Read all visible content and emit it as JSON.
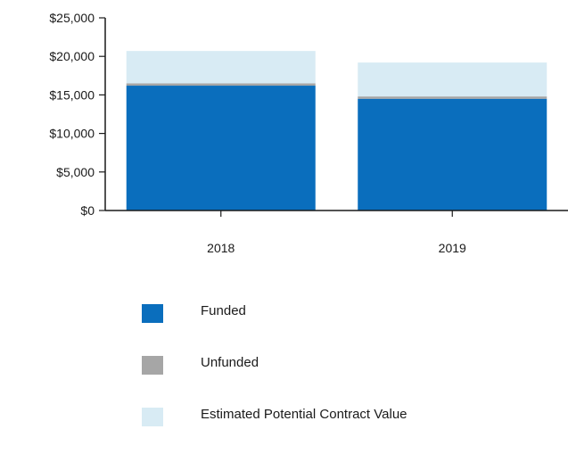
{
  "chart_data": {
    "type": "bar",
    "stacked": true,
    "categories": [
      "2018",
      "2019"
    ],
    "series": [
      {
        "name": "Funded",
        "color": "#0a6ebd",
        "values": [
          16200,
          14500
        ]
      },
      {
        "name": "Unfunded",
        "color": "#a6a6a6",
        "values": [
          300,
          300
        ]
      },
      {
        "name": "Estimated Potential Contract Value",
        "color": "#d8ebf4",
        "values": [
          4200,
          4400
        ]
      }
    ],
    "y_ticks": [
      "$0",
      "$5,000",
      "$10,000",
      "$15,000",
      "$20,000",
      "$25,000"
    ],
    "ylim": [
      0,
      25000
    ],
    "grid": false,
    "legend_position": "bottom"
  },
  "legend": [
    {
      "label": "Funded",
      "color": "#0a6ebd"
    },
    {
      "label": "Unfunded",
      "color": "#a6a6a6"
    },
    {
      "label": "Estimated Potential Contract Value",
      "color": "#d8ebf4"
    }
  ]
}
